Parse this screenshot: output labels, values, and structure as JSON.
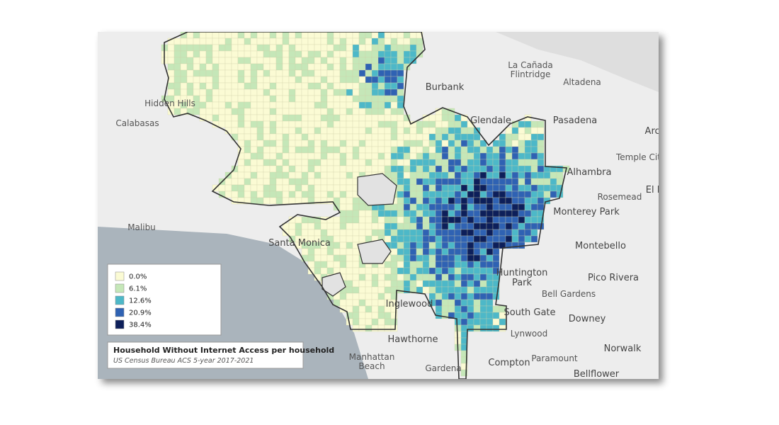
{
  "map": {
    "title": "Household Without Internet Access per household",
    "source": "US Census Bureau ACS 5-year 2017-2021"
  },
  "legend": {
    "items": [
      {
        "label": "0.0%",
        "color": "#fbfbd4"
      },
      {
        "label": "6.1%",
        "color": "#c5e7b8"
      },
      {
        "label": "12.6%",
        "color": "#4db8c8"
      },
      {
        "label": "20.9%",
        "color": "#2f62b3"
      },
      {
        "label": "38.4%",
        "color": "#0d1f5a"
      }
    ]
  },
  "places": [
    "Burbank",
    "Glendale",
    "Pasadena",
    "La Cañada",
    "Flintridge",
    "Altadena",
    "Calabasas",
    "Hidden Hills",
    "Malibu",
    "Santa Monica",
    "Alhambra",
    "Temple City",
    "Rosemead",
    "El Monte",
    "Monterey Park",
    "Montebello",
    "Pico Rivera",
    "Huntington",
    "Park",
    "Bell Gardens",
    "South Gate",
    "Downey",
    "Lynwood",
    "Norwalk",
    "Compton",
    "Paramount",
    "Bellflower",
    "Inglewood",
    "Hawthorne",
    "Manhattan",
    "Beach",
    "Gardena",
    "Arcadia"
  ]
}
